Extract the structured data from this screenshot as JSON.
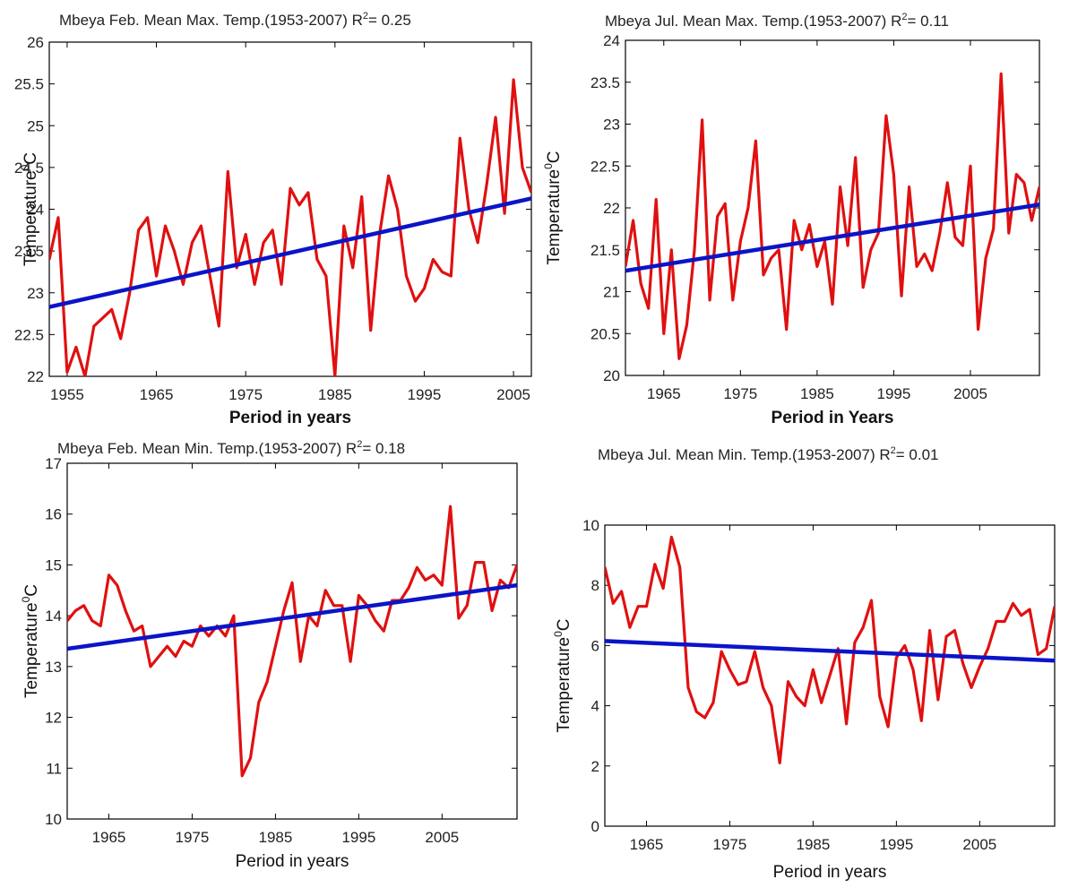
{
  "colors": {
    "series": "#e01010",
    "trend": "#0a14c8",
    "axis": "#000000",
    "background": "#ffffff"
  },
  "chart_data": [
    {
      "type": "line",
      "title": "Mbeya Feb. Mean Max. Temp.(1953-2007) R",
      "r2_sup": "2",
      "r2_value": "= 0.25",
      "ylabel": "Temperature",
      "ylabel_sup": "0",
      "ylabel_unit": "C",
      "xlabel": "Period in years",
      "xlim": [
        1953,
        2007
      ],
      "ylim": [
        22,
        26
      ],
      "xticks": [
        1955,
        1965,
        1975,
        1985,
        1995,
        2005
      ],
      "yticks": [
        22,
        22.5,
        23,
        23.5,
        24,
        24.5,
        25,
        25.5,
        26
      ],
      "ytick_labels": [
        "22",
        "22.5",
        "23",
        "23.5",
        "24",
        "24.5",
        "25",
        "25.5",
        "26"
      ],
      "series": [
        {
          "name": "",
          "x": [
            1953,
            1954,
            1955,
            1956,
            1957,
            1958,
            1959,
            1960,
            1961,
            1962,
            1963,
            1964,
            1965,
            1966,
            1967,
            1968,
            1969,
            1970,
            1971,
            1972,
            1973,
            1974,
            1975,
            1976,
            1977,
            1978,
            1979,
            1980,
            1981,
            1982,
            1983,
            1984,
            1985,
            1986,
            1987,
            1988,
            1989,
            1990,
            1991,
            1992,
            1993,
            1994,
            1995,
            1996,
            1997,
            1998,
            1999,
            2000,
            2001,
            2002,
            2003,
            2004,
            2005,
            2006,
            2007
          ],
          "y": [
            23.4,
            23.9,
            22.05,
            22.35,
            22.0,
            22.6,
            22.7,
            22.8,
            22.45,
            23.0,
            23.75,
            23.9,
            23.2,
            23.8,
            23.5,
            23.1,
            23.6,
            23.8,
            23.2,
            22.6,
            24.45,
            23.3,
            23.7,
            23.1,
            23.6,
            23.75,
            23.1,
            24.25,
            24.05,
            24.2,
            23.4,
            23.2,
            22.0,
            23.8,
            23.3,
            24.15,
            22.55,
            23.7,
            24.4,
            24.0,
            23.2,
            22.9,
            23.05,
            23.4,
            23.25,
            23.2,
            24.85,
            24.0,
            23.6,
            24.3,
            25.1,
            23.95,
            25.55,
            24.5,
            24.2
          ]
        },
        {
          "name": "",
          "trend": true,
          "x": [
            1953,
            2007
          ],
          "y": [
            22.83,
            24.13
          ]
        }
      ]
    },
    {
      "type": "line",
      "title": "Mbeya Jul. Mean Max. Temp.(1953-2007) R",
      "r2_sup": "2",
      "r2_value": "= 0.11",
      "ylabel": "Temperature",
      "ylabel_sup": "0",
      "ylabel_unit": "C",
      "xlabel": "Period in Years",
      "xlim": [
        1960,
        2014
      ],
      "ylim": [
        20,
        24
      ],
      "xticks": [
        1965,
        1975,
        1985,
        1995,
        2005
      ],
      "yticks": [
        20,
        20.5,
        21,
        21.5,
        22,
        22.5,
        23,
        23.5,
        24
      ],
      "ytick_labels": [
        "20",
        "20.5",
        "21",
        "21.5",
        "22",
        "22.5",
        "23",
        "23.5",
        "24"
      ],
      "series": [
        {
          "name": "",
          "x": [
            1960,
            1961,
            1962,
            1963,
            1964,
            1965,
            1966,
            1967,
            1968,
            1969,
            1970,
            1971,
            1972,
            1973,
            1974,
            1975,
            1976,
            1977,
            1978,
            1979,
            1980,
            1981,
            1982,
            1983,
            1984,
            1985,
            1986,
            1987,
            1988,
            1989,
            1990,
            1991,
            1992,
            1993,
            1994,
            1995,
            1996,
            1997,
            1998,
            1999,
            2000,
            2001,
            2002,
            2003,
            2004,
            2005,
            2006,
            2007,
            2008,
            2009,
            2010,
            2011,
            2012,
            2013,
            2014
          ],
          "y": [
            21.3,
            21.85,
            21.1,
            20.8,
            22.1,
            20.5,
            21.5,
            20.2,
            20.6,
            21.5,
            23.05,
            20.9,
            21.9,
            22.05,
            20.9,
            21.6,
            22.0,
            22.8,
            21.2,
            21.4,
            21.5,
            20.55,
            21.85,
            21.5,
            21.8,
            21.3,
            21.6,
            20.85,
            22.25,
            21.55,
            22.6,
            21.05,
            21.5,
            21.7,
            23.1,
            22.4,
            20.95,
            22.25,
            21.3,
            21.45,
            21.25,
            21.7,
            22.3,
            21.65,
            21.55,
            22.5,
            20.55,
            21.4,
            21.75,
            23.6,
            21.7,
            22.4,
            22.3,
            21.85,
            22.25
          ]
        },
        {
          "name": "",
          "trend": true,
          "x": [
            1960,
            2014
          ],
          "y": [
            21.25,
            22.04
          ]
        }
      ]
    },
    {
      "type": "line",
      "title": "Mbeya Feb. Mean Min. Temp.(1953-2007) R",
      "r2_sup": "2",
      "r2_value": "= 0.18",
      "ylabel": "Temperature",
      "ylabel_sup": "0",
      "ylabel_unit": "C",
      "xlabel": "Period in years",
      "xlim": [
        1960,
        2014
      ],
      "ylim": [
        10,
        17
      ],
      "xticks": [
        1965,
        1975,
        1985,
        1995,
        2005
      ],
      "yticks": [
        10,
        11,
        12,
        13,
        14,
        15,
        16,
        17
      ],
      "ytick_labels": [
        "10",
        "11",
        "12",
        "13",
        "14",
        "15",
        "16",
        "17"
      ],
      "series": [
        {
          "name": "",
          "x": [
            1960,
            1961,
            1962,
            1963,
            1964,
            1965,
            1966,
            1967,
            1968,
            1969,
            1970,
            1971,
            1972,
            1973,
            1974,
            1975,
            1976,
            1977,
            1978,
            1979,
            1980,
            1981,
            1982,
            1983,
            1984,
            1985,
            1986,
            1987,
            1988,
            1989,
            1990,
            1991,
            1992,
            1993,
            1994,
            1995,
            1996,
            1997,
            1998,
            1999,
            2000,
            2001,
            2002,
            2003,
            2004,
            2005,
            2006,
            2007,
            2008,
            2009,
            2010,
            2011,
            2012,
            2013,
            2014
          ],
          "y": [
            13.9,
            14.1,
            14.2,
            13.9,
            13.8,
            14.8,
            14.6,
            14.1,
            13.7,
            13.8,
            13.0,
            13.2,
            13.4,
            13.2,
            13.5,
            13.4,
            13.8,
            13.6,
            13.8,
            13.6,
            14.0,
            10.85,
            11.2,
            12.3,
            12.7,
            13.4,
            14.1,
            14.65,
            13.1,
            14.0,
            13.8,
            14.5,
            14.2,
            14.2,
            13.1,
            14.4,
            14.2,
            13.9,
            13.7,
            14.3,
            14.3,
            14.55,
            14.95,
            14.7,
            14.8,
            14.6,
            16.15,
            13.95,
            14.2,
            15.05,
            15.05,
            14.1,
            14.7,
            14.55,
            15.0
          ]
        },
        {
          "name": "",
          "trend": true,
          "x": [
            1960,
            2014
          ],
          "y": [
            13.35,
            14.6
          ]
        }
      ]
    },
    {
      "type": "line",
      "title": "Mbeya Jul. Mean Min. Temp.(1953-2007) R",
      "r2_sup": "2",
      "r2_value": "= 0.01",
      "ylabel": "Temperature",
      "ylabel_sup": "0",
      "ylabel_unit": "C",
      "xlabel": "Period in years",
      "xlim": [
        1960,
        2014
      ],
      "ylim": [
        0,
        10
      ],
      "xticks": [
        1965,
        1975,
        1985,
        1995,
        2005
      ],
      "yticks": [
        0,
        2,
        4,
        6,
        8,
        10
      ],
      "ytick_labels": [
        "0",
        "2",
        "4",
        "6",
        "8",
        "10"
      ],
      "series": [
        {
          "name": "",
          "x": [
            1960,
            1961,
            1962,
            1963,
            1964,
            1965,
            1966,
            1967,
            1968,
            1969,
            1970,
            1971,
            1972,
            1973,
            1974,
            1975,
            1976,
            1977,
            1978,
            1979,
            1980,
            1981,
            1982,
            1983,
            1984,
            1985,
            1986,
            1987,
            1988,
            1989,
            1990,
            1991,
            1992,
            1993,
            1994,
            1995,
            1996,
            1997,
            1998,
            1999,
            2000,
            2001,
            2002,
            2003,
            2004,
            2005,
            2006,
            2007,
            2008,
            2009,
            2010,
            2011,
            2012,
            2013,
            2014
          ],
          "y": [
            8.6,
            7.4,
            7.8,
            6.6,
            7.3,
            7.3,
            8.7,
            7.9,
            9.6,
            8.6,
            4.6,
            3.8,
            3.6,
            4.1,
            5.8,
            5.2,
            4.7,
            4.8,
            5.8,
            4.6,
            4.0,
            2.1,
            4.8,
            4.3,
            4.0,
            5.2,
            4.1,
            5.0,
            5.9,
            3.4,
            6.1,
            6.6,
            7.5,
            4.3,
            3.3,
            5.6,
            6.0,
            5.2,
            3.5,
            6.5,
            4.2,
            6.3,
            6.5,
            5.4,
            4.6,
            5.3,
            5.9,
            6.8,
            6.8,
            7.4,
            7.0,
            7.2,
            5.7,
            5.9,
            7.3
          ]
        },
        {
          "name": "",
          "trend": true,
          "x": [
            1960,
            2014
          ],
          "y": [
            6.15,
            5.5
          ]
        }
      ]
    }
  ]
}
